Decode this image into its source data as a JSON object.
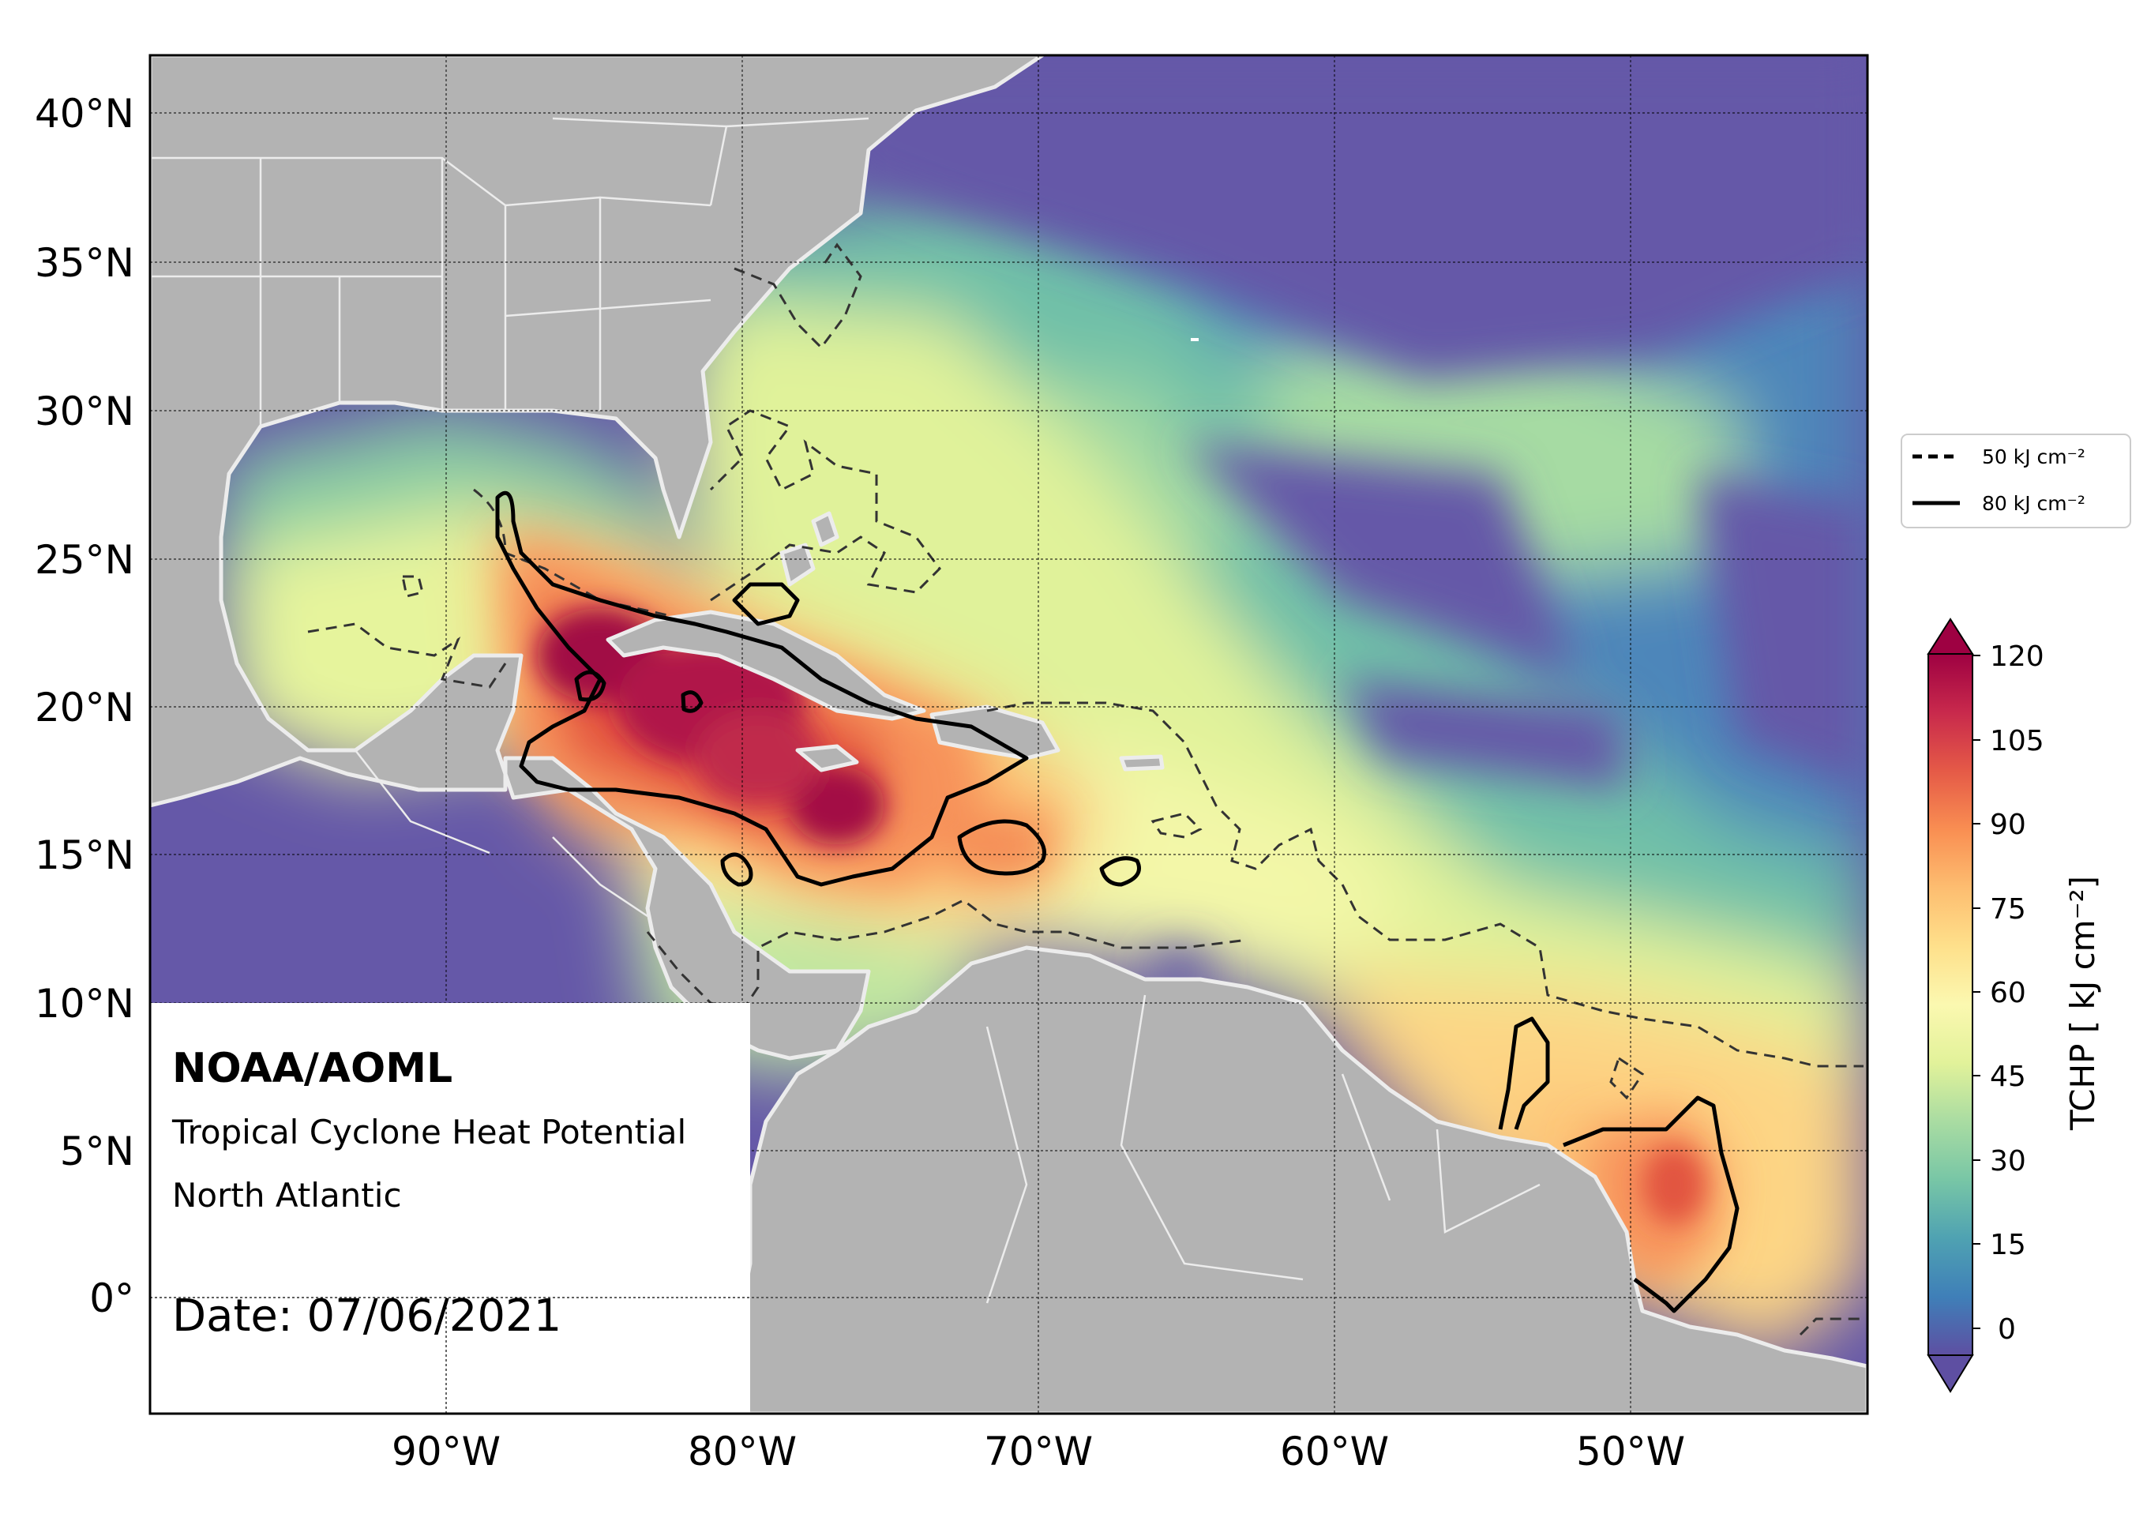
{
  "map": {
    "lat_labels": [
      "40°N",
      "35°N",
      "30°N",
      "25°N",
      "20°N",
      "15°N",
      "10°N",
      "5°N",
      "0°"
    ],
    "lon_labels": [
      "90°W",
      "80°W",
      "70°W",
      "60°W",
      "50°W"
    ],
    "lon_range": [
      "100°W",
      "42°W"
    ],
    "lat_range": [
      "4°S",
      "42°N"
    ],
    "gridlines": true,
    "colors": {
      "land": "#b3b3b3",
      "coastline": "#ececec",
      "cold_ocean": "#6558a8",
      "warm_peak": "#9e0142"
    }
  },
  "legend": {
    "dashed_label": "50 kJ cm⁻²",
    "solid_label": "80 kJ cm⁻²"
  },
  "colorbar": {
    "title": "TCHP [ kJ cm⁻²]",
    "ticks": [
      "120",
      "105",
      "90",
      "75",
      "60",
      "45",
      "30",
      "15",
      "0"
    ],
    "scale": [
      "#5e4fa2",
      "#3f7fb8",
      "#4fa2b2",
      "#78c6a6",
      "#a9dca2",
      "#e2f29a",
      "#fbf8b0",
      "#fee08b",
      "#fdbd70",
      "#f98e52",
      "#e55a47",
      "#c8294c",
      "#9e0142"
    ]
  },
  "annotation": {
    "org": "NOAA/AOML",
    "product": "Tropical Cyclone Heat Potential",
    "region": "North Atlantic",
    "date": "Date: 07/06/2021"
  }
}
